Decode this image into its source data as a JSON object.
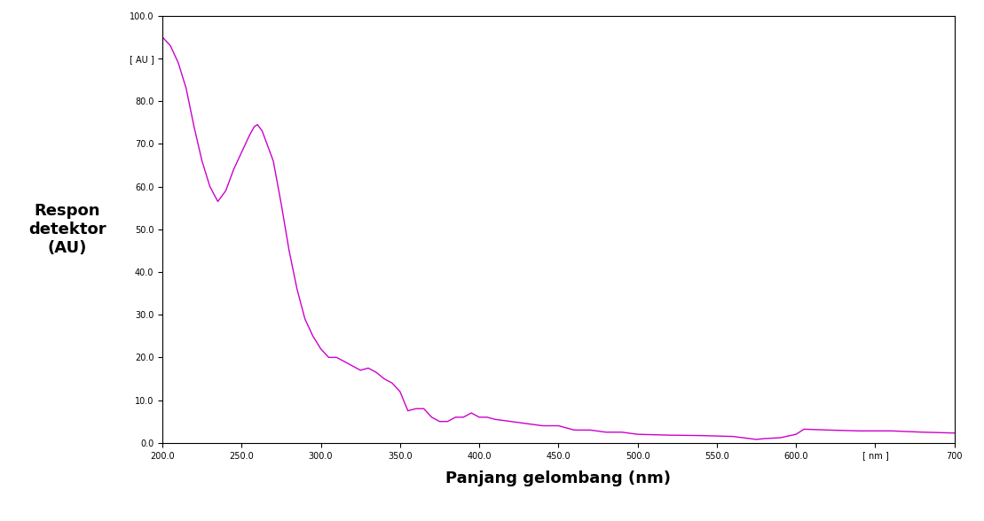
{
  "chart_data": {
    "type": "line",
    "x_label": "Panjang gelombang (nm)",
    "y_label": "Respon\ndetektor\n(AU)",
    "x": [
      200,
      205,
      210,
      215,
      220,
      225,
      230,
      235,
      240,
      245,
      250,
      255,
      258,
      260,
      263,
      265,
      270,
      275,
      280,
      285,
      290,
      295,
      300,
      305,
      310,
      315,
      320,
      325,
      330,
      335,
      340,
      345,
      350,
      355,
      360,
      365,
      370,
      375,
      380,
      385,
      390,
      395,
      400,
      405,
      410,
      420,
      430,
      440,
      450,
      460,
      470,
      480,
      490,
      500,
      520,
      540,
      560,
      575,
      580,
      590,
      600,
      605,
      620,
      640,
      660,
      680,
      700
    ],
    "values": [
      95,
      93,
      89,
      83,
      74,
      66,
      60,
      56.5,
      59,
      64,
      68,
      72,
      74,
      74.5,
      73,
      71,
      66,
      56,
      45,
      36,
      29,
      25,
      22,
      20,
      20,
      19,
      18,
      17,
      17.5,
      16.5,
      15,
      14,
      12,
      7.5,
      8,
      8,
      6,
      5,
      5,
      6,
      6,
      7,
      6,
      6,
      5.5,
      5,
      4.5,
      4,
      4,
      3,
      3,
      2.5,
      2.5,
      2,
      1.8,
      1.7,
      1.5,
      0.8,
      1,
      1.2,
      2,
      3.2,
      3,
      2.8,
      2.8,
      2.5,
      2.3
    ],
    "color": "#cc00cc",
    "xlim": [
      200,
      700
    ],
    "ylim": [
      0,
      100
    ],
    "xticks": [
      200.0,
      250.0,
      300.0,
      350.0,
      400.0,
      450.0,
      500.0,
      550.0,
      600.0,
      {
        "value": 650,
        "label": "[ nm ]"
      },
      {
        "value": 700,
        "label": "700"
      }
    ],
    "yticks": [
      0.0,
      10.0,
      20.0,
      30.0,
      40.0,
      50.0,
      60.0,
      70.0,
      80.0,
      {
        "value": 90,
        "label": "[ AU ]"
      },
      100.0
    ],
    "grid": false
  }
}
